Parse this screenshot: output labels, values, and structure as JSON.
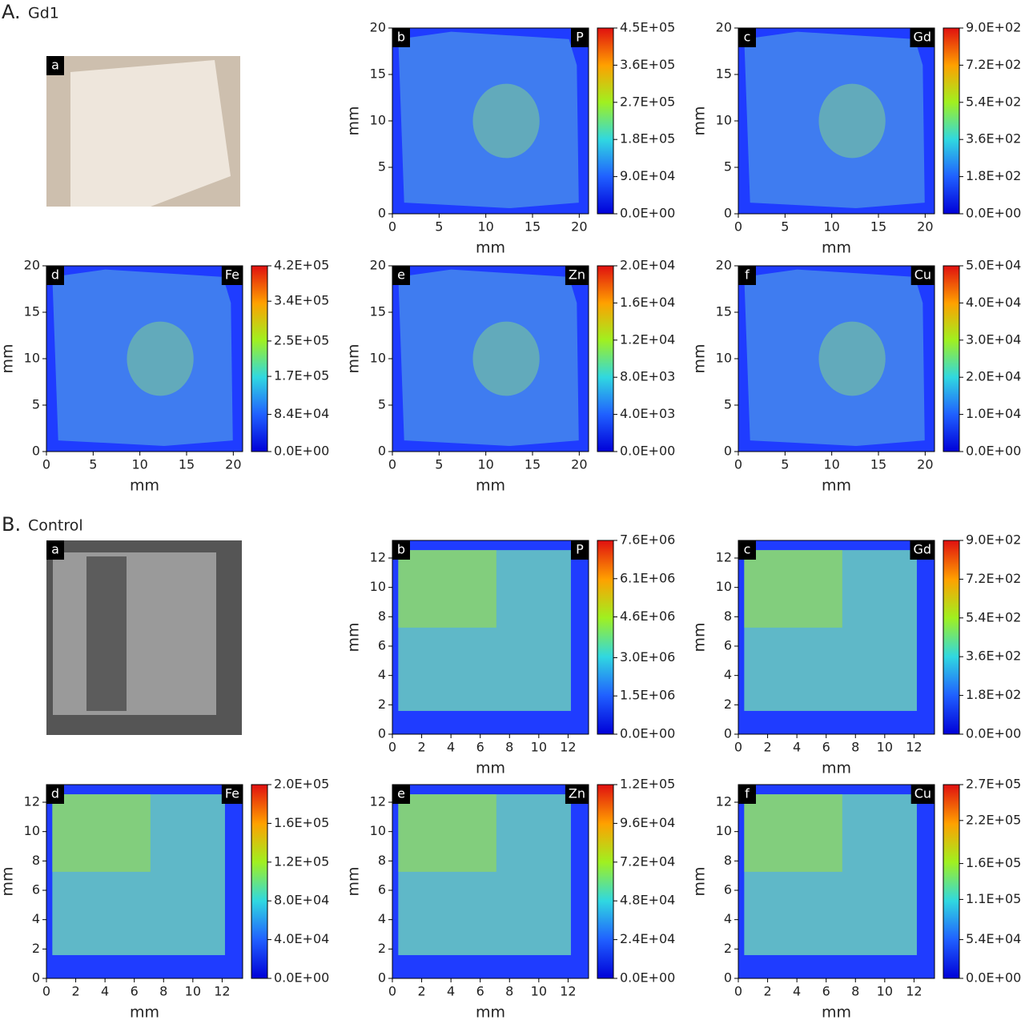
{
  "sections": [
    {
      "label": "A.",
      "name": "Gd1",
      "photo_panel": "a"
    },
    {
      "label": "B.",
      "name": "Control",
      "photo_panel": "a"
    }
  ],
  "chart_data": [
    {
      "type": "heatmap",
      "panel": "b",
      "element": "P",
      "xlabel": "mm",
      "ylabel": "mm",
      "xlim": [
        0,
        21
      ],
      "ylim": [
        0,
        20
      ],
      "xticks": [
        0,
        5,
        10,
        15,
        20
      ],
      "yticks": [
        0,
        5,
        10,
        15,
        20
      ],
      "clim": [
        0,
        450000
      ],
      "cticks": [
        {
          "value": 0,
          "label": "0.0E+00"
        },
        {
          "value": 90000,
          "label": "9.0E+04"
        },
        {
          "value": 180000,
          "label": "1.8E+05"
        },
        {
          "value": 270000,
          "label": "2.7E+05"
        },
        {
          "value": 360000,
          "label": "3.6E+05"
        },
        {
          "value": 450000,
          "label": "4.5E+05"
        }
      ]
    },
    {
      "type": "heatmap",
      "panel": "c",
      "element": "Gd",
      "xlabel": "mm",
      "ylabel": "mm",
      "xlim": [
        0,
        21
      ],
      "ylim": [
        0,
        20
      ],
      "xticks": [
        0,
        5,
        10,
        15,
        20
      ],
      "yticks": [
        0,
        5,
        10,
        15,
        20
      ],
      "clim": [
        0,
        900
      ],
      "cticks": [
        {
          "value": 0,
          "label": "0.0E+00"
        },
        {
          "value": 180,
          "label": "1.8E+02"
        },
        {
          "value": 360,
          "label": "3.6E+02"
        },
        {
          "value": 540,
          "label": "5.4E+02"
        },
        {
          "value": 720,
          "label": "7.2E+02"
        },
        {
          "value": 900,
          "label": "9.0E+02"
        }
      ]
    },
    {
      "type": "heatmap",
      "panel": "d",
      "element": "Fe",
      "xlabel": "mm",
      "ylabel": "mm",
      "xlim": [
        0,
        21
      ],
      "ylim": [
        0,
        20
      ],
      "xticks": [
        0,
        5,
        10,
        15,
        20
      ],
      "yticks": [
        0,
        5,
        10,
        15,
        20
      ],
      "clim": [
        0,
        420000
      ],
      "cticks": [
        {
          "value": 0,
          "label": "0.0E+00"
        },
        {
          "value": 84000,
          "label": "8.4E+04"
        },
        {
          "value": 170000,
          "label": "1.7E+05"
        },
        {
          "value": 250000,
          "label": "2.5E+05"
        },
        {
          "value": 340000,
          "label": "3.4E+05"
        },
        {
          "value": 420000,
          "label": "4.2E+05"
        }
      ]
    },
    {
      "type": "heatmap",
      "panel": "e",
      "element": "Zn",
      "xlabel": "mm",
      "ylabel": "mm",
      "xlim": [
        0,
        21
      ],
      "ylim": [
        0,
        20
      ],
      "xticks": [
        0,
        5,
        10,
        15,
        20
      ],
      "yticks": [
        0,
        5,
        10,
        15,
        20
      ],
      "clim": [
        0,
        20000
      ],
      "cticks": [
        {
          "value": 0,
          "label": "0.0E+00"
        },
        {
          "value": 4000,
          "label": "4.0E+03"
        },
        {
          "value": 8000,
          "label": "8.0E+03"
        },
        {
          "value": 12000,
          "label": "1.2E+04"
        },
        {
          "value": 16000,
          "label": "1.6E+04"
        },
        {
          "value": 20000,
          "label": "2.0E+04"
        }
      ]
    },
    {
      "type": "heatmap",
      "panel": "f",
      "element": "Cu",
      "xlabel": "mm",
      "ylabel": "mm",
      "xlim": [
        0,
        21
      ],
      "ylim": [
        0,
        20
      ],
      "xticks": [
        0,
        5,
        10,
        15,
        20
      ],
      "yticks": [
        0,
        5,
        10,
        15,
        20
      ],
      "clim": [
        0,
        50000
      ],
      "cticks": [
        {
          "value": 0,
          "label": "0.0E+00"
        },
        {
          "value": 10000,
          "label": "1.0E+04"
        },
        {
          "value": 20000,
          "label": "2.0E+04"
        },
        {
          "value": 30000,
          "label": "3.0E+04"
        },
        {
          "value": 40000,
          "label": "4.0E+04"
        },
        {
          "value": 50000,
          "label": "5.0E+04"
        }
      ]
    },
    {
      "type": "heatmap",
      "panel": "b",
      "element": "P",
      "xlabel": "mm",
      "ylabel": "mm",
      "xlim": [
        0,
        13.4
      ],
      "ylim": [
        0,
        13.2
      ],
      "xticks": [
        0,
        2,
        4,
        6,
        8,
        10,
        12
      ],
      "yticks": [
        0,
        2,
        4,
        6,
        8,
        10,
        12
      ],
      "clim": [
        0,
        7600000
      ],
      "cticks": [
        {
          "value": 0,
          "label": "0.0E+00"
        },
        {
          "value": 1500000,
          "label": "1.5E+06"
        },
        {
          "value": 3000000,
          "label": "3.0E+06"
        },
        {
          "value": 4600000,
          "label": "4.6E+06"
        },
        {
          "value": 6100000,
          "label": "6.1E+06"
        },
        {
          "value": 7600000,
          "label": "7.6E+06"
        }
      ]
    },
    {
      "type": "heatmap",
      "panel": "c",
      "element": "Gd",
      "xlabel": "mm",
      "ylabel": "mm",
      "xlim": [
        0,
        13.4
      ],
      "ylim": [
        0,
        13.2
      ],
      "xticks": [
        0,
        2,
        4,
        6,
        8,
        10,
        12
      ],
      "yticks": [
        0,
        2,
        4,
        6,
        8,
        10,
        12
      ],
      "clim": [
        0,
        900
      ],
      "cticks": [
        {
          "value": 0,
          "label": "0.0E+00"
        },
        {
          "value": 180,
          "label": "1.8E+02"
        },
        {
          "value": 360,
          "label": "3.6E+02"
        },
        {
          "value": 540,
          "label": "5.4E+02"
        },
        {
          "value": 720,
          "label": "7.2E+02"
        },
        {
          "value": 900,
          "label": "9.0E+02"
        }
      ]
    },
    {
      "type": "heatmap",
      "panel": "d",
      "element": "Fe",
      "xlabel": "mm",
      "ylabel": "mm",
      "xlim": [
        0,
        13.4
      ],
      "ylim": [
        0,
        13.2
      ],
      "xticks": [
        0,
        2,
        4,
        6,
        8,
        10,
        12
      ],
      "yticks": [
        0,
        2,
        4,
        6,
        8,
        10,
        12
      ],
      "clim": [
        0,
        200000
      ],
      "cticks": [
        {
          "value": 0,
          "label": "0.0E+00"
        },
        {
          "value": 40000,
          "label": "4.0E+04"
        },
        {
          "value": 80000,
          "label": "8.0E+04"
        },
        {
          "value": 120000,
          "label": "1.2E+05"
        },
        {
          "value": 160000,
          "label": "1.6E+05"
        },
        {
          "value": 200000,
          "label": "2.0E+05"
        }
      ]
    },
    {
      "type": "heatmap",
      "panel": "e",
      "element": "Zn",
      "xlabel": "mm",
      "ylabel": "mm",
      "xlim": [
        0,
        13.4
      ],
      "ylim": [
        0,
        13.2
      ],
      "xticks": [
        0,
        2,
        4,
        6,
        8,
        10,
        12
      ],
      "yticks": [
        0,
        2,
        4,
        6,
        8,
        10,
        12
      ],
      "clim": [
        0,
        120000
      ],
      "cticks": [
        {
          "value": 0,
          "label": "0.0E+00"
        },
        {
          "value": 24000,
          "label": "2.4E+04"
        },
        {
          "value": 48000,
          "label": "4.8E+04"
        },
        {
          "value": 72000,
          "label": "7.2E+04"
        },
        {
          "value": 96000,
          "label": "9.6E+04"
        },
        {
          "value": 120000,
          "label": "1.2E+05"
        }
      ]
    },
    {
      "type": "heatmap",
      "panel": "f",
      "element": "Cu",
      "xlabel": "mm",
      "ylabel": "mm",
      "xlim": [
        0,
        13.4
      ],
      "ylim": [
        0,
        13.2
      ],
      "xticks": [
        0,
        2,
        4,
        6,
        8,
        10,
        12
      ],
      "yticks": [
        0,
        2,
        4,
        6,
        8,
        10,
        12
      ],
      "clim": [
        0,
        270000
      ],
      "cticks": [
        {
          "value": 0,
          "label": "0.0E+00"
        },
        {
          "value": 54000,
          "label": "5.4E+04"
        },
        {
          "value": 110000,
          "label": "1.1E+05"
        },
        {
          "value": 160000,
          "label": "1.6E+05"
        },
        {
          "value": 220000,
          "label": "2.2E+05"
        },
        {
          "value": 270000,
          "label": "2.7E+05"
        }
      ]
    }
  ]
}
